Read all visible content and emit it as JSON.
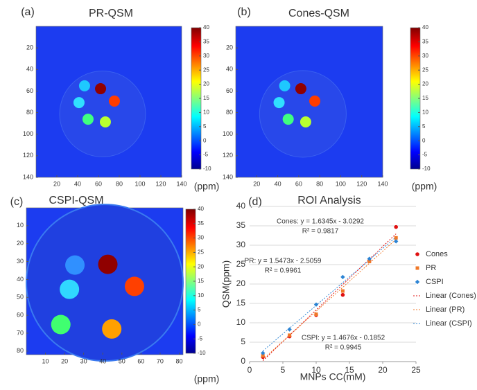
{
  "chart_data": [
    {
      "type": "image",
      "panel_label": "(a)",
      "title": "PR-QSM",
      "xlim": [
        0,
        140
      ],
      "ylim": [
        0,
        140
      ],
      "xticks": [
        20,
        40,
        60,
        80,
        100,
        120,
        140
      ],
      "yticks": [
        20,
        40,
        60,
        80,
        100,
        120,
        140
      ],
      "colorbar": {
        "clim": [
          -10,
          40
        ],
        "ticks": [
          -10,
          -5,
          0,
          5,
          10,
          15,
          20,
          25,
          30,
          35,
          40
        ],
        "label": "(ppm)"
      }
    },
    {
      "type": "image",
      "panel_label": "(b)",
      "title": "Cones-QSM",
      "xlim": [
        0,
        140
      ],
      "ylim": [
        0,
        140
      ],
      "xticks": [
        20,
        40,
        60,
        80,
        100,
        120,
        140
      ],
      "yticks": [
        20,
        40,
        60,
        80,
        100,
        120,
        140
      ],
      "colorbar": {
        "clim": [
          -10,
          40
        ],
        "ticks": [
          -10,
          -5,
          0,
          5,
          10,
          15,
          20,
          25,
          30,
          35,
          40
        ],
        "label": "(ppm)"
      }
    },
    {
      "type": "image",
      "panel_label": "(c)",
      "title": "CSPI-QSM",
      "xlim": [
        0,
        82
      ],
      "ylim": [
        0,
        82
      ],
      "xticks": [
        10,
        20,
        30,
        40,
        50,
        60,
        70,
        80
      ],
      "yticks": [
        10,
        20,
        30,
        40,
        50,
        60,
        70,
        80
      ],
      "colorbar": {
        "clim": [
          -10,
          40
        ],
        "ticks": [
          -10,
          -5,
          0,
          5,
          10,
          15,
          20,
          25,
          30,
          35,
          40
        ],
        "label": "(ppm)"
      }
    },
    {
      "type": "scatter",
      "panel_label": "(d)",
      "title": "ROI Analysis",
      "x_label": "MNPs CC(mM)",
      "y_label": "QSM(ppm)",
      "x": [
        2,
        6,
        10,
        14,
        18,
        22
      ],
      "series": [
        {
          "name": "Cones",
          "color": "#e01010",
          "marker": "circle",
          "values": [
            1.2,
            6.5,
            12.0,
            17.2,
            26.0,
            34.7
          ]
        },
        {
          "name": "PR",
          "color": "#f07828",
          "marker": "square",
          "values": [
            1.5,
            6.8,
            12.2,
            18.2,
            25.8,
            31.9
          ]
        },
        {
          "name": "CSPI",
          "color": "#2c84d4",
          "marker": "diamond",
          "values": [
            2.2,
            8.3,
            14.7,
            21.8,
            26.5,
            31.0
          ]
        }
      ],
      "fits": [
        {
          "name": "Linear (Cones)",
          "color": "#e01010",
          "slope": 1.6345,
          "intercept": -3.0292,
          "equation": "Cones: y = 1.6345x - 3.0292",
          "r2": "R² = 0.9817"
        },
        {
          "name": "Linear (PR)",
          "color": "#f07828",
          "slope": 1.5473,
          "intercept": -2.5059,
          "equation": "PR: y = 1.5473x - 2.5059",
          "r2": "R² = 0.9961"
        },
        {
          "name": "Linear (CSPI)",
          "color": "#2c84d4",
          "slope": 1.4676,
          "intercept": -0.1852,
          "equation": "CSPI: y = 1.4676x - 0.1852",
          "r2": "R² = 0.9945"
        }
      ],
      "xlim": [
        0,
        25
      ],
      "ylim": [
        0,
        40
      ],
      "xticks": [
        0,
        5,
        10,
        15,
        20,
        25
      ],
      "yticks": [
        0,
        5,
        10,
        15,
        20,
        25,
        30,
        35,
        40
      ],
      "grid": true,
      "legend": "right"
    }
  ]
}
